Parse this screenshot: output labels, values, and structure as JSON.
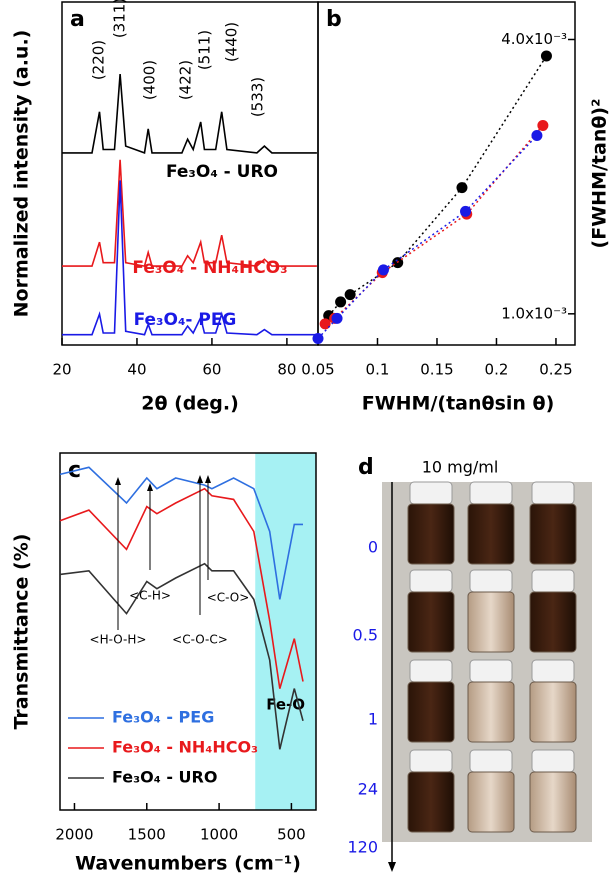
{
  "chart_data": [
    {
      "type": "line",
      "panel_label": "a",
      "xlabel": "2θ (deg.)",
      "ylabel": "Normalized intensity (a.u.)",
      "xlim": [
        20,
        88.3
      ],
      "xticks": [
        20,
        40,
        60,
        80
      ],
      "ylim": [
        0,
        10
      ],
      "x": [
        20,
        28,
        30,
        31,
        34,
        35.5,
        37,
        42,
        43,
        44,
        52,
        53.5,
        55,
        57,
        58,
        61,
        62.6,
        64,
        72,
        74,
        76,
        88
      ],
      "series": [
        {
          "name": "Fe₃O₄ - URO",
          "color": "#000000",
          "values": [
            5.6,
            5.6,
            6.8,
            5.7,
            5.7,
            7.9,
            5.8,
            5.6,
            6.3,
            5.6,
            5.6,
            6.0,
            5.7,
            6.5,
            5.7,
            5.7,
            6.8,
            5.7,
            5.6,
            5.8,
            5.6,
            5.6
          ]
        },
        {
          "name": "Fe₃O₄ - NH₄HCO₃",
          "color": "#e8191c",
          "values": [
            2.3,
            2.3,
            3.0,
            2.4,
            2.4,
            5.4,
            2.4,
            2.3,
            2.7,
            2.3,
            2.3,
            2.6,
            2.4,
            3.0,
            2.4,
            2.4,
            3.2,
            2.4,
            2.3,
            2.5,
            2.3,
            2.3
          ]
        },
        {
          "name": "Fe₃O₄- PEG",
          "color": "#1a1ae6",
          "values": [
            0.3,
            0.3,
            0.9,
            0.35,
            0.35,
            4.8,
            0.4,
            0.3,
            0.6,
            0.3,
            0.3,
            0.55,
            0.35,
            0.8,
            0.35,
            0.35,
            0.9,
            0.35,
            0.3,
            0.45,
            0.3,
            0.3
          ]
        }
      ],
      "annotations": [
        "(220)",
        "(311)",
        "(400)",
        "(422)",
        "(511)",
        "(440)",
        "(533)"
      ]
    },
    {
      "type": "scatter",
      "panel_label": "b",
      "xlabel": "FWHM/(tanθsin θ)",
      "ylabel": "(FWHM/tanθ)²",
      "xlim": [
        0.05,
        0.266
      ],
      "xticks": [
        0.05,
        0.1,
        0.15,
        0.2,
        0.25
      ],
      "ylim": [
        0.000659,
        0.00441
      ],
      "yticks": [
        {
          "value": 0.001,
          "label": "1.0x10⁻³"
        },
        {
          "value": 0.004,
          "label": "4.0x10⁻³"
        }
      ],
      "series": [
        {
          "color": "#000000",
          "x": [
            0.059,
            0.069,
            0.077,
            0.117,
            0.171,
            0.242
          ],
          "values": [
            0.00098,
            0.00113,
            0.00121,
            0.00156,
            0.00238,
            0.00382
          ]
        },
        {
          "color": "#e8191c",
          "x": [
            0.056,
            0.064,
            0.104,
            0.175,
            0.239
          ],
          "values": [
            0.00089,
            0.00095,
            0.00145,
            0.00209,
            0.00306
          ]
        },
        {
          "color": "#1a1ae6",
          "x": [
            0.05,
            0.066,
            0.105,
            0.174,
            0.234
          ],
          "values": [
            0.00073,
            0.00095,
            0.00148,
            0.00212,
            0.00295
          ]
        }
      ]
    },
    {
      "type": "line",
      "panel_label": "c",
      "xlabel": "Wavenumbers (cm⁻¹)",
      "ylabel": "Transmittance (%)",
      "xlim": [
        2100,
        330
      ],
      "xticks": [
        2000,
        1500,
        1000,
        500
      ],
      "ylim": [
        0,
        10
      ],
      "span": [
        750,
        330
      ],
      "span_label": "Fe-O",
      "x": [
        2100,
        1900,
        1640,
        1500,
        1430,
        1300,
        1100,
        1050,
        900,
        760,
        650,
        580,
        480,
        420
      ],
      "series": [
        {
          "name": "Fe₃O₄ - PEG",
          "color": "#2e6fe0",
          "values": [
            9.4,
            9.6,
            8.6,
            9.3,
            9.0,
            9.3,
            9.1,
            9.0,
            9.3,
            9.0,
            7.8,
            5.9,
            8.0,
            8.0
          ]
        },
        {
          "name": "Fe₃O₄ - NH₄HCO₃",
          "color": "#e8191c",
          "values": [
            8.1,
            8.4,
            7.3,
            8.5,
            8.3,
            8.6,
            9.0,
            8.8,
            8.7,
            7.8,
            5.3,
            3.4,
            4.8,
            3.6
          ]
        },
        {
          "name": "Fe₃O₄ - URO",
          "color": "#333333",
          "values": [
            6.6,
            6.7,
            5.5,
            6.4,
            6.2,
            6.5,
            6.9,
            6.7,
            6.7,
            5.9,
            4.2,
            1.7,
            3.4,
            2.5
          ]
        }
      ],
      "annotations": [
        "<H-O-H>",
        "<C-H>",
        "<C-O-C>",
        "<C-O>"
      ]
    }
  ],
  "photo_panel": {
    "panel_label": "d",
    "title": "10 mg/ml",
    "times": [
      0,
      0.5,
      1,
      24,
      120
    ]
  }
}
